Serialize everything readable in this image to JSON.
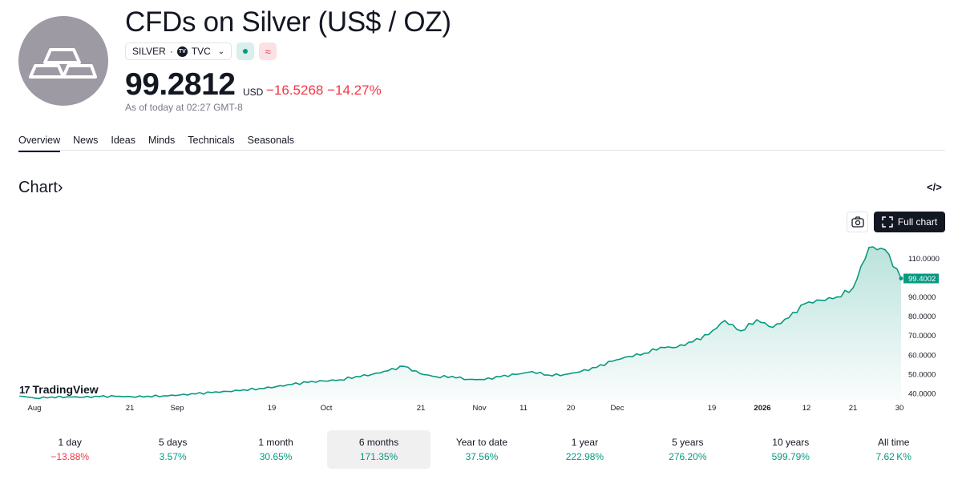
{
  "header": {
    "title": "CFDs on Silver (US$ / OZ)",
    "symbol": "SILVER",
    "separator": "·",
    "exchange": "TVC",
    "tv_badge": "TV",
    "status_delayed_glyph": "≈"
  },
  "quote": {
    "price": "99.2812",
    "currency": "USD",
    "change": "−16.5268",
    "change_percent": "−14.27%",
    "as_of": "As of today at 02:27 GMT-8"
  },
  "tabs": [
    "Overview",
    "News",
    "Ideas",
    "Minds",
    "Technicals",
    "Seasonals"
  ],
  "section": {
    "title": "Chart",
    "chevron": "›",
    "embed_glyph": "</>"
  },
  "toolbar": {
    "full_chart_label": "Full chart"
  },
  "brand": {
    "name": "TradingView",
    "mark": "17"
  },
  "colors": {
    "up": "#089981",
    "down": "#f23645",
    "text": "#131722",
    "muted": "#787b86"
  },
  "chart_data": {
    "type": "area",
    "title": "CFDs on Silver (US$ / OZ) — 6 months",
    "x_labels": [
      "Aug",
      "21",
      "Sep",
      "19",
      "Oct",
      "21",
      "Nov",
      "11",
      "20",
      "Dec",
      "19",
      "2026",
      "12",
      "21",
      "30"
    ],
    "y_ticks": [
      "110.0000",
      "90.0000",
      "80.0000",
      "70.0000",
      "60.0000",
      "50.0000",
      "40.0000"
    ],
    "ylim": [
      36,
      120
    ],
    "last_value_label": "99.4002",
    "last_value": 99.4002,
    "series": [
      {
        "name": "SILVER",
        "values": [
          38.5,
          37.3,
          37.9,
          38.0,
          37.8,
          38.1,
          38.2,
          38.0,
          38.3,
          38.5,
          38.9,
          39.5,
          40.2,
          40.8,
          41.6,
          42.3,
          43.2,
          44.4,
          45.5,
          46.2,
          46.8,
          48.5,
          49.6,
          51.5,
          53.8,
          50.0,
          48.4,
          48.6,
          47.0,
          46.9,
          48.4,
          49.6,
          51.1,
          49.3,
          49.5,
          51.0,
          53.2,
          56.5,
          58.9,
          60.6,
          63.7,
          63.7,
          66.5,
          70.3,
          77.6,
          72.2,
          78.0,
          74.0,
          79.0,
          86.3,
          88.1,
          89.8,
          94.4,
          115.5,
          114.3,
          99.4
        ]
      }
    ]
  },
  "periods": [
    {
      "label": "1 day",
      "value": "−13.88%",
      "dir": "neg"
    },
    {
      "label": "5 days",
      "value": "3.57%",
      "dir": "pos"
    },
    {
      "label": "1 month",
      "value": "30.65%",
      "dir": "pos"
    },
    {
      "label": "6 months",
      "value": "171.35%",
      "dir": "pos"
    },
    {
      "label": "Year to date",
      "value": "37.56%",
      "dir": "pos"
    },
    {
      "label": "1 year",
      "value": "222.98%",
      "dir": "pos"
    },
    {
      "label": "5 years",
      "value": "276.20%",
      "dir": "pos"
    },
    {
      "label": "10 years",
      "value": "599.79%",
      "dir": "pos"
    },
    {
      "label": "All time",
      "value": "7.62 K%",
      "dir": "pos"
    }
  ],
  "active_period_index": 3
}
